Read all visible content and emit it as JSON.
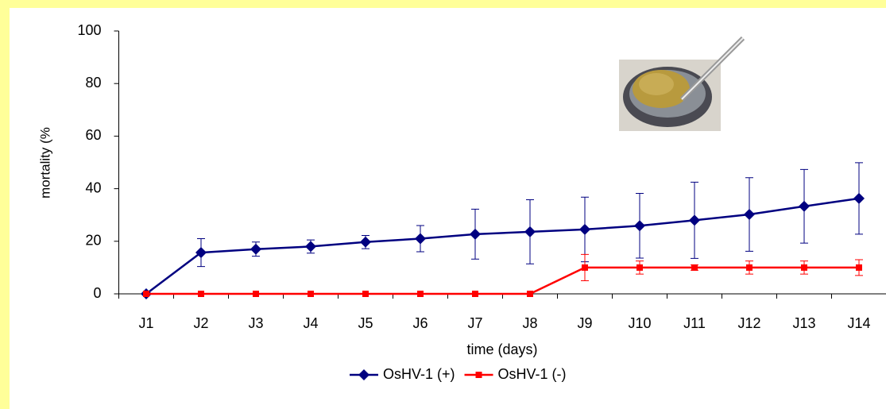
{
  "chart_data": {
    "type": "line",
    "y_label": "mortality (%",
    "x_label": "time (days)",
    "categories": [
      "J1",
      "J2",
      "J3",
      "J4",
      "J5",
      "J6",
      "J7",
      "J8",
      "J9",
      "J10",
      "J11",
      "J12",
      "J13",
      "J14"
    ],
    "series": [
      {
        "name": "OsHV-1 (+)",
        "color": "#000080",
        "marker": "diamond",
        "values": [
          0,
          15.7,
          17,
          18,
          19.7,
          21,
          22.7,
          23.6,
          24.5,
          25.9,
          28,
          30.2,
          33.3,
          36.3
        ],
        "errors": [
          0,
          5.3,
          2.7,
          2.5,
          2.5,
          5,
          9.5,
          12.2,
          12.3,
          12.3,
          14.5,
          14,
          14,
          13.6
        ]
      },
      {
        "name": "OsHV-1 (-)",
        "color": "#ff0000",
        "marker": "square",
        "values": [
          0,
          0,
          0,
          0,
          0,
          0,
          0,
          0,
          10,
          10,
          10,
          10,
          10,
          10
        ],
        "errors": [
          0,
          0,
          0,
          0,
          0,
          0,
          0,
          0,
          5,
          2.5,
          1,
          2.5,
          2.5,
          3
        ]
      }
    ],
    "ylim": [
      0,
      100
    ],
    "yticks": [
      0,
      20,
      40,
      60,
      80,
      100
    ],
    "grid": false,
    "legend": "bottom"
  }
}
